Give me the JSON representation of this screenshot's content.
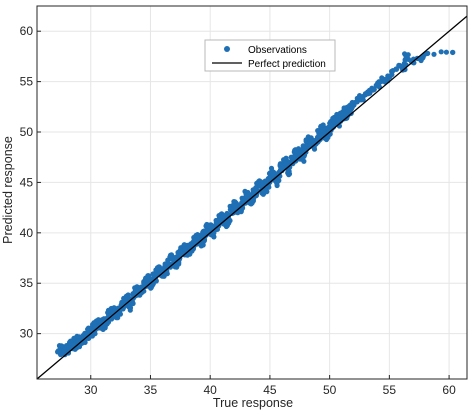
{
  "chart_data": {
    "type": "scatter",
    "title": "",
    "xlabel": "True response",
    "ylabel": "Predicted response",
    "xlim": [
      25.5,
      61.5
    ],
    "ylim": [
      25.5,
      62.5
    ],
    "x_ticks": [
      "30",
      "35",
      "40",
      "45",
      "50",
      "55",
      "60"
    ],
    "y_ticks": [
      "30",
      "35",
      "40",
      "45",
      "50",
      "55",
      "60"
    ],
    "grid": true,
    "legend_position": "top-center",
    "series": [
      {
        "name": "Observations",
        "kind": "points",
        "color": "#1f6fb5",
        "points": [
          [
            27.3,
            28.3
          ],
          [
            27.8,
            28.4
          ],
          [
            28.2,
            28.6
          ],
          [
            28.6,
            28.9
          ],
          [
            29.0,
            29.3
          ],
          [
            29.3,
            29.2
          ],
          [
            29.7,
            29.9
          ],
          [
            30.1,
            30.2
          ],
          [
            30.4,
            30.7
          ],
          [
            30.8,
            31.1
          ],
          [
            31.1,
            30.9
          ],
          [
            31.5,
            31.7
          ],
          [
            31.9,
            32.2
          ],
          [
            32.2,
            31.9
          ],
          [
            32.6,
            32.9
          ],
          [
            33.0,
            33.4
          ],
          [
            33.3,
            32.8
          ],
          [
            33.7,
            34.1
          ],
          [
            34.0,
            34.3
          ],
          [
            34.4,
            34.6
          ],
          [
            34.7,
            35.3
          ],
          [
            35.1,
            34.9
          ],
          [
            35.4,
            35.8
          ],
          [
            35.8,
            36.3
          ],
          [
            36.1,
            36.0
          ],
          [
            36.5,
            36.7
          ],
          [
            36.8,
            37.4
          ],
          [
            37.2,
            37.0
          ],
          [
            37.5,
            37.9
          ],
          [
            37.9,
            38.4
          ],
          [
            38.2,
            38.0
          ],
          [
            38.6,
            38.9
          ],
          [
            38.9,
            39.5
          ],
          [
            39.3,
            39.1
          ],
          [
            39.6,
            40.2
          ],
          [
            40.0,
            40.6
          ],
          [
            40.3,
            40.0
          ],
          [
            40.7,
            41.2
          ],
          [
            41.0,
            41.5
          ],
          [
            41.4,
            41.0
          ],
          [
            41.7,
            42.3
          ],
          [
            42.1,
            42.7
          ],
          [
            42.4,
            42.1
          ],
          [
            42.8,
            43.2
          ],
          [
            43.1,
            43.8
          ],
          [
            43.5,
            43.2
          ],
          [
            43.8,
            44.3
          ],
          [
            44.2,
            44.7
          ],
          [
            44.5,
            44.2
          ],
          [
            44.9,
            45.4
          ],
          [
            45.2,
            45.9
          ],
          [
            45.6,
            45.1
          ],
          [
            45.9,
            46.6
          ],
          [
            46.3,
            46.9
          ],
          [
            46.6,
            46.1
          ],
          [
            47.0,
            47.5
          ],
          [
            47.3,
            48.0
          ],
          [
            47.7,
            47.4
          ],
          [
            48.0,
            48.6
          ],
          [
            48.4,
            49.1
          ],
          [
            48.7,
            48.5
          ],
          [
            49.1,
            49.6
          ],
          [
            49.4,
            50.2
          ],
          [
            49.8,
            49.7
          ],
          [
            50.1,
            50.6
          ],
          [
            50.5,
            51.3
          ],
          [
            50.8,
            51.1
          ],
          [
            51.2,
            51.8
          ],
          [
            51.5,
            52.0
          ],
          [
            51.9,
            52.5
          ],
          [
            52.3,
            53.0
          ],
          [
            52.7,
            53.4
          ],
          [
            53.2,
            53.8
          ],
          [
            53.7,
            54.2
          ],
          [
            54.1,
            54.7
          ],
          [
            54.6,
            55.2
          ],
          [
            55.2,
            55.7
          ],
          [
            55.8,
            56.6
          ],
          [
            56.3,
            56.2
          ],
          [
            56.4,
            57.5
          ],
          [
            57.0,
            56.9
          ],
          [
            57.6,
            57.3
          ],
          [
            58.2,
            57.8
          ],
          [
            60.3,
            57.9
          ]
        ]
      },
      {
        "name": "Perfect prediction",
        "kind": "line",
        "color": "#000000",
        "x": [
          25.5,
          61.5
        ],
        "y": [
          25.5,
          61.5
        ]
      }
    ]
  }
}
